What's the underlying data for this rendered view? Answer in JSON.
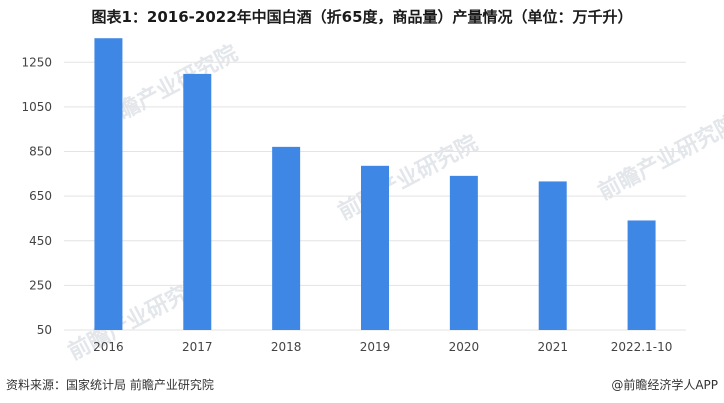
{
  "title": "图表1：2016-2022年中国白酒（折65度，商品量）产量情况（单位：万千升）",
  "source": "资料来源：国家统计局 前瞻产业研究院",
  "credit": "@前瞻经济学人APP",
  "watermark": "前瞻产业研究院",
  "colors": {
    "bar": "#3f87e5",
    "grid": "#e3e3e3"
  },
  "chart_data": {
    "type": "bar",
    "categories": [
      "2016",
      "2017",
      "2018",
      "2019",
      "2020",
      "2021",
      "2022.1-10"
    ],
    "values": [
      1358,
      1198,
      871,
      786,
      741,
      716,
      541
    ],
    "ylim": [
      50,
      1350
    ],
    "yticks": [
      50,
      250,
      450,
      650,
      850,
      1050,
      1250
    ],
    "grid": true,
    "legend": "none",
    "xlabel": "",
    "ylabel": ""
  }
}
